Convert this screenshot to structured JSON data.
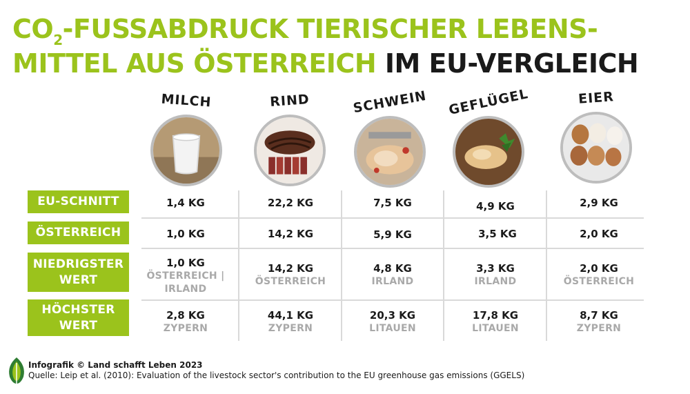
{
  "title": {
    "line1_green": "CO",
    "line1_sub": "2",
    "line1_rest": "-FUSSABDRUCK TIERISCHER LEBENS-",
    "line2_green": "MITTEL AUS ÖSTERREICH",
    "line2_black": " IM EU-VERGLEICH"
  },
  "columns": [
    {
      "label": "MILCH",
      "image": "milk-glass"
    },
    {
      "label": "RIND",
      "image": "beef-steak"
    },
    {
      "label": "SCHWEIN",
      "image": "pork-roast"
    },
    {
      "label": "GEFLÜGEL",
      "image": "chicken"
    },
    {
      "label": "EIER",
      "image": "eggs"
    }
  ],
  "rows": [
    {
      "label": "EU-SCHNITT"
    },
    {
      "label": "ÖSTERREICH"
    },
    {
      "label": "NIEDRIGSTER WERT"
    },
    {
      "label": "HÖCHSTER WERT"
    }
  ],
  "table": {
    "eu_schnitt": [
      "1,4 KG",
      "22,2 KG",
      "7,5 KG",
      "4,9 KG",
      "2,9 KG"
    ],
    "oesterreich": [
      "1,0 KG",
      "14,2 KG",
      "5,9 KG",
      "3,5 KG",
      "2,0 KG"
    ],
    "niedrigster": [
      {
        "value": "1,0 KG",
        "country": "ÖSTERREICH | IRLAND"
      },
      {
        "value": "14,2 KG",
        "country": "ÖSTERREICH"
      },
      {
        "value": "4,8 KG",
        "country": "IRLAND"
      },
      {
        "value": "3,3 KG",
        "country": "IRLAND"
      },
      {
        "value": "2,0 KG",
        "country": "ÖSTERREICH"
      }
    ],
    "hoechster": [
      {
        "value": "2,8 KG",
        "country": "ZYPERN"
      },
      {
        "value": "44,1 KG",
        "country": "ZYPERN"
      },
      {
        "value": "20,3 KG",
        "country": "LITAUEN"
      },
      {
        "value": "17,8 KG",
        "country": "LITAUEN"
      },
      {
        "value": "8,7 KG",
        "country": "ZYPERN"
      }
    ]
  },
  "footer": {
    "credit": "Infografik © Land schafft Leben 2023",
    "source": "Quelle: Leip et al. (2010): Evaluation of the livestock sector's contribution to the EU greenhouse gas emissions (GGELS)"
  },
  "colors": {
    "accent": "#9bc31c",
    "text": "#1a1a1a",
    "muted": "#a9a9a9",
    "grid": "#d9d9d9"
  },
  "logo_icon": "leaf-logo-icon"
}
